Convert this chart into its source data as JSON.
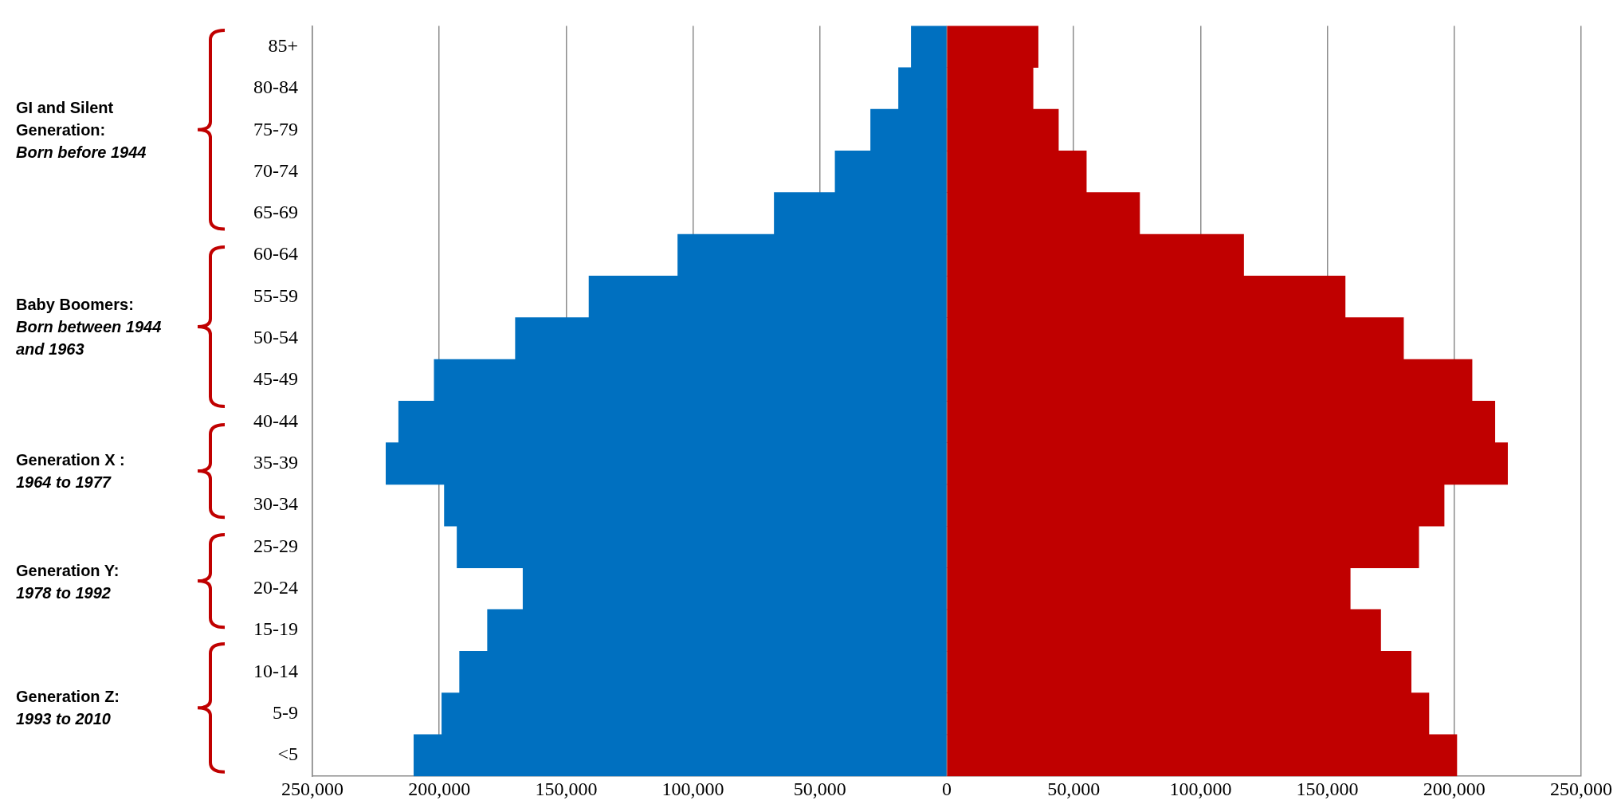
{
  "chart_data": {
    "type": "bar",
    "orientation": "horizontal",
    "stacked": true,
    "categories": [
      "85+",
      "80-84",
      "75-79",
      "70-74",
      "65-69",
      "60-64",
      "55-59",
      "50-54",
      "45-49",
      "40-44",
      "35-39",
      "30-34",
      "25-29",
      "20-24",
      "15-19",
      "10-14",
      "5-9",
      "<5"
    ],
    "series": [
      {
        "color": "#0070c0",
        "values": [
          -14000,
          -19000,
          -30000,
          -44000,
          -68000,
          -106000,
          -141000,
          -170000,
          -202000,
          -216000,
          -221000,
          -198000,
          -193000,
          -167000,
          -181000,
          -192000,
          -199000,
          -210000
        ]
      },
      {
        "color": "#c00000",
        "values": [
          36000,
          34000,
          44000,
          55000,
          76000,
          117000,
          157000,
          180000,
          207000,
          216000,
          221000,
          196000,
          186000,
          159000,
          171000,
          183000,
          190000,
          201000
        ]
      }
    ],
    "xlim": [
      -250000,
      250000
    ],
    "xticks": [
      {
        "value": -250000,
        "label": "250,000"
      },
      {
        "value": -200000,
        "label": "200,000"
      },
      {
        "value": -150000,
        "label": "150,000"
      },
      {
        "value": -100000,
        "label": "100,000"
      },
      {
        "value": -50000,
        "label": "50,000"
      },
      0,
      {
        "value": 50000,
        "label": "50,000"
      },
      {
        "value": 100000,
        "label": "100,000"
      },
      {
        "value": 150000,
        "label": "150,000"
      },
      {
        "value": 200000,
        "label": "200,000"
      },
      {
        "value": 250000,
        "label": "250,000"
      }
    ],
    "grid": "x",
    "legend": false,
    "annotations": [
      "GI and Silent Generation:\nBorn before 1944",
      "Baby Boomers:\nBorn between 1944 and 1963",
      "Generation X :\n1964 to 1977",
      "Generation Y:\n1978 to 1992",
      "Generation Z:\n1993 to 2010"
    ]
  }
}
